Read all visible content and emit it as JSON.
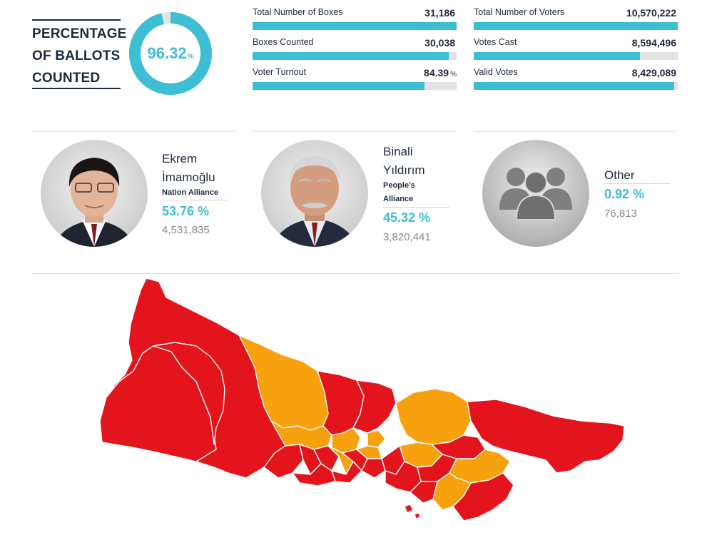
{
  "summary": {
    "title_lines": [
      "PERCENTAGE",
      "OF BALLOTS",
      "COUNTED"
    ],
    "percent_value": "96.32",
    "percent_unit": "%",
    "percent_fraction": 0.9632
  },
  "stats": [
    {
      "label": "Total Number of Boxes",
      "value": "31,186",
      "unit": "",
      "fill": 1.0
    },
    {
      "label": "Boxes Counted",
      "value": "30,038",
      "unit": "",
      "fill": 0.9632
    },
    {
      "label": "Voter Turnout",
      "value": "84.39",
      "unit": "%",
      "fill": 0.8439
    },
    {
      "label": "Total Number of Voters",
      "value": "10,570,222",
      "unit": "",
      "fill": 1.0
    },
    {
      "label": "Votes Cast",
      "value": "8,594,496",
      "unit": "",
      "fill": 0.8131
    },
    {
      "label": "Valid Votes",
      "value": "8,429,089",
      "unit": "",
      "fill": 0.9808
    }
  ],
  "candidates": [
    {
      "name_line1": "Ekrem",
      "name_line2": "İmamoğlu",
      "alliance": "Nation Alliance",
      "percent": "53.76 %",
      "votes": "4,531,835"
    },
    {
      "name_line1": "Binali",
      "name_line2": "Yıldırım",
      "alliance_line1": "People's",
      "alliance_line2": "Alliance",
      "percent": "45.32 %",
      "votes": "3,820,441"
    },
    {
      "name": "Other",
      "percent": "0.92 %",
      "votes": "76,813"
    }
  ],
  "colors": {
    "accent": "#3dbed3",
    "track": "#e3e3e3",
    "dark_text": "#1d2a3c",
    "nation_alliance_red": "#e3141b",
    "peoples_alliance_orange": "#f8a10f"
  },
  "icons": [
    "ekrem-imamoglu-portrait",
    "binali-yildirim-portrait",
    "people-group-icon",
    "istanbul-district-map"
  ]
}
